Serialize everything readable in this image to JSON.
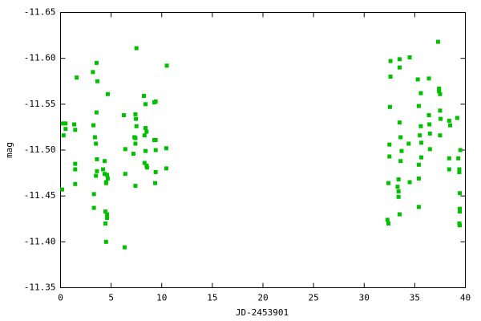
{
  "chart_data": {
    "type": "scatter",
    "xlabel": "JD-2453901",
    "ylabel": "mag",
    "xlim": [
      0,
      40
    ],
    "xticks": [
      0,
      5,
      10,
      15,
      20,
      25,
      30,
      35,
      40
    ],
    "ylim": [
      -11.35,
      -11.65
    ],
    "yticks": [
      -11.35,
      {
        "value": -11.4,
        "label": "-11.40"
      },
      -11.45,
      {
        "value": -11.5,
        "label": "-11.50"
      },
      -11.55,
      {
        "value": -11.6,
        "label": "-11.60"
      },
      -11.65
    ],
    "grid": false,
    "color": "#00c000",
    "x": [
      0.16,
      0.24,
      0.3,
      0.5,
      0.5,
      1.35,
      1.45,
      1.45,
      1.45,
      1.45,
      1.6,
      3.2,
      3.56,
      3.64,
      3.25,
      3.4,
      3.5,
      3.56,
      3.5,
      3.6,
      3.3,
      3.3,
      3.6,
      4.2,
      4.36,
      4.5,
      4.5,
      4.36,
      4.44,
      4.6,
      4.44,
      4.6,
      4.5,
      4.67,
      4.6,
      4.67,
      6.26,
      6.4,
      6.34,
      6.4,
      7.5,
      7.2,
      7.3,
      7.4,
      7.4,
      7.45,
      7.5,
      7.4,
      7.4,
      8.24,
      8.4,
      8.3,
      8.4,
      8.5,
      8.3,
      8.5,
      8.55,
      8.4,
      9.27,
      9.4,
      9.27,
      9.4,
      9.4,
      9.4,
      9.35,
      10.45,
      10.45,
      10.5,
      32.3,
      32.4,
      32.4,
      32.5,
      32.5,
      32.55,
      32.6,
      32.6,
      33.3,
      33.4,
      33.4,
      33.4,
      33.5,
      33.5,
      33.5,
      33.5,
      33.6,
      33.6,
      33.7,
      34.5,
      34.5,
      34.4,
      35.3,
      35.4,
      35.4,
      35.4,
      35.4,
      35.5,
      35.6,
      35.6,
      35.65,
      35.65,
      36.4,
      36.4,
      36.45,
      36.5,
      36.5,
      37.3,
      37.4,
      37.4,
      37.5,
      37.5,
      37.5,
      37.55,
      38.4,
      38.5,
      38.4,
      38.4,
      39.2,
      39.3,
      39.4,
      39.4,
      39.45,
      39.5,
      39.45,
      39.45,
      39.4,
      39.45
    ],
    "values": [
      -11.457,
      -11.529,
      -11.516,
      -11.529,
      -11.523,
      -11.528,
      -11.522,
      -11.485,
      -11.479,
      -11.463,
      -11.579,
      -11.585,
      -11.595,
      -11.575,
      -11.527,
      -11.514,
      -11.507,
      -11.541,
      -11.472,
      -11.49,
      -11.452,
      -11.437,
      -11.477,
      -11.479,
      -11.488,
      -11.465,
      -11.464,
      -11.474,
      -11.433,
      -11.43,
      -11.42,
      -11.426,
      -11.4,
      -11.561,
      -11.473,
      -11.469,
      -11.538,
      -11.501,
      -11.394,
      -11.474,
      -11.611,
      -11.496,
      -11.514,
      -11.539,
      -11.513,
      -11.534,
      -11.526,
      -11.507,
      -11.461,
      -11.559,
      -11.55,
      -11.516,
      -11.524,
      -11.52,
      -11.486,
      -11.483,
      -11.481,
      -11.499,
      -11.552,
      -11.553,
      -11.511,
      -11.511,
      -11.5,
      -11.476,
      -11.464,
      -11.502,
      -11.48,
      -11.592,
      -11.424,
      -11.42,
      -11.464,
      -11.506,
      -11.493,
      -11.547,
      -11.58,
      -11.597,
      -11.46,
      -11.455,
      -11.449,
      -11.468,
      -11.43,
      -11.599,
      -11.59,
      -11.53,
      -11.514,
      -11.488,
      -11.499,
      -11.465,
      -11.601,
      -11.507,
      -11.577,
      -11.548,
      -11.438,
      -11.469,
      -11.484,
      -11.516,
      -11.526,
      -11.562,
      -11.508,
      -11.492,
      -11.538,
      -11.578,
      -11.528,
      -11.501,
      -11.518,
      -11.618,
      -11.567,
      -11.564,
      -11.561,
      -11.543,
      -11.516,
      -11.534,
      -11.532,
      -11.527,
      -11.491,
      -11.479,
      -11.535,
      -11.491,
      -11.476,
      -11.479,
      -11.453,
      -11.5,
      -11.436,
      -11.433,
      -11.42,
      -11.418
    ]
  }
}
